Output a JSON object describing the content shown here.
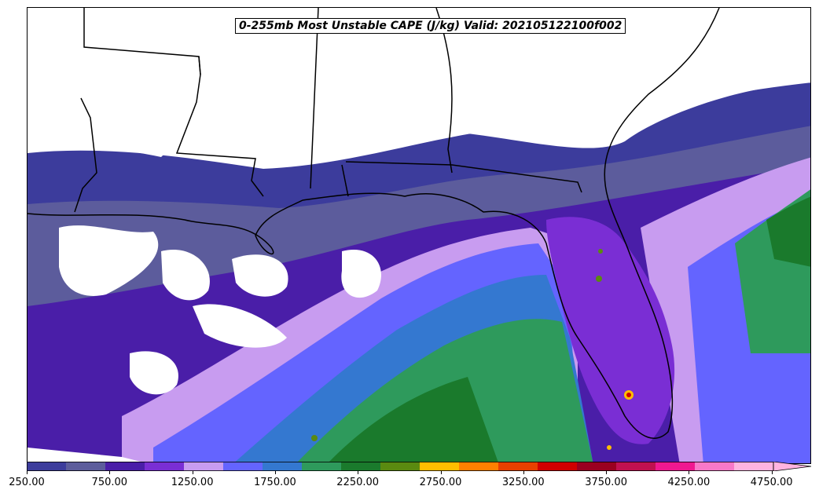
{
  "title": "0-255mb Most Unstable CAPE (J/kg) Valid: 202105122100f002",
  "colorbar": {
    "ticks": [
      "250.00",
      "750.00",
      "1250.00",
      "1750.00",
      "2250.00",
      "2750.00",
      "3250.00",
      "3750.00",
      "4250.00",
      "4750.00"
    ],
    "colors": [
      "#3c3c9c",
      "#5c5c9c",
      "#4a1ea8",
      "#7a2ed4",
      "#c89cf0",
      "#6464ff",
      "#3478d0",
      "#2e9a5c",
      "#1a7a2c",
      "#5a8a10",
      "#ffbe00",
      "#ff8000",
      "#e84000",
      "#d00000",
      "#9a0020",
      "#c01050",
      "#f01890",
      "#f878c8",
      "#ffb4e0"
    ]
  },
  "map": {
    "palette": {
      "low": "#3c3c9c",
      "low2": "#5c5c9c",
      "mid_purple": "#4a1ea8",
      "violet": "#7a2ed4",
      "lavender": "#c89cf0",
      "blue": "#6464ff",
      "steel_blue": "#3478d0",
      "green": "#2e9a5c",
      "dark_green": "#1a7a2c",
      "olive": "#5a8a10",
      "orange": "#ffbe00",
      "red": "#d00000"
    }
  }
}
